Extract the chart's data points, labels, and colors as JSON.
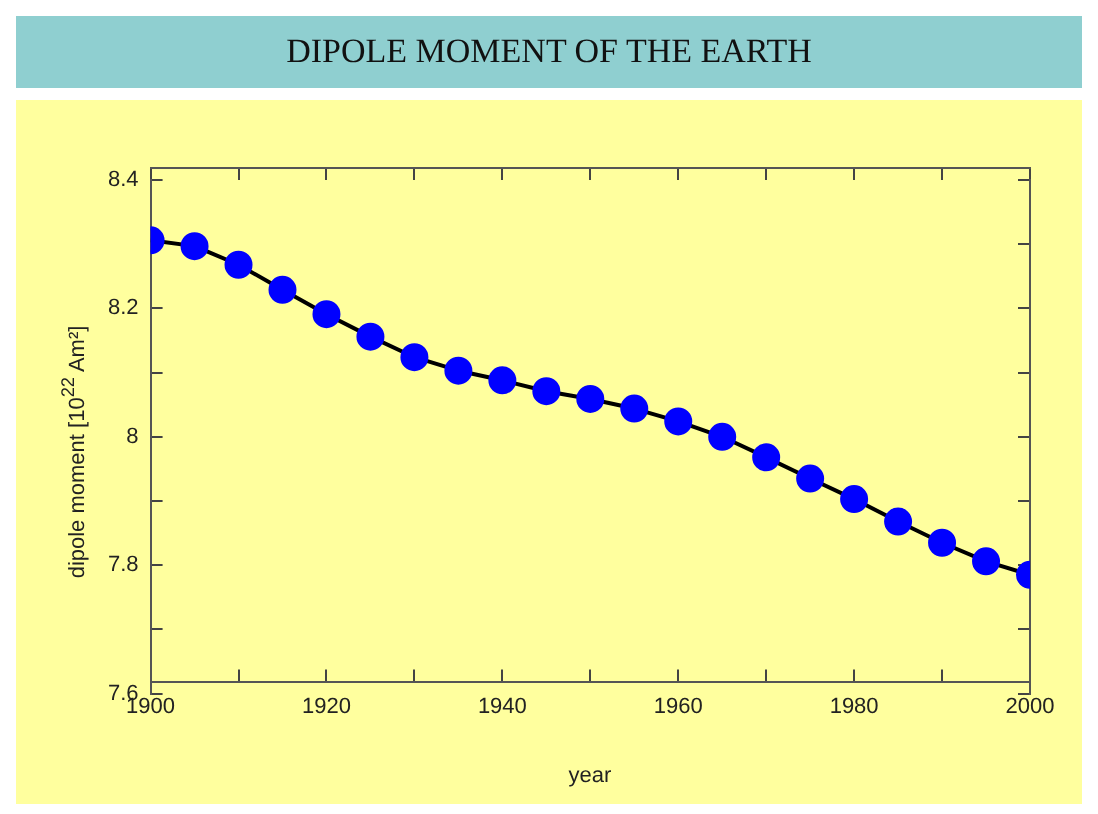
{
  "chart_data": {
    "type": "line",
    "title": "DIPOLE MOMENT OF THE EARTH",
    "xlabel": "year",
    "ylabel": "dipole moment [10$^{22}$ Am²]",
    "x": [
      1900,
      1905,
      1910,
      1915,
      1920,
      1925,
      1930,
      1935,
      1940,
      1945,
      1950,
      1955,
      1960,
      1965,
      1970,
      1975,
      1980,
      1985,
      1990,
      1995,
      2000
    ],
    "series": [
      {
        "color": "#0000ff",
        "values": [
          8.306,
          8.297,
          8.268,
          8.229,
          8.191,
          8.156,
          8.124,
          8.103,
          8.088,
          8.071,
          8.059,
          8.044,
          8.024,
          8.0,
          7.968,
          7.935,
          7.903,
          7.868,
          7.835,
          7.806,
          7.785
        ]
      }
    ],
    "xlim": [
      1900,
      2000
    ],
    "xticks": [
      1900,
      {
        "value": 1910,
        "label": null
      },
      1920,
      {
        "value": 1930,
        "label": null
      },
      1940,
      {
        "value": 1950,
        "label": null
      },
      1960,
      {
        "value": 1970,
        "label": null
      },
      1980,
      {
        "value": 1990,
        "label": null
      },
      2000
    ],
    "ylim": [
      7.6,
      8.4
    ],
    "yticks": [
      {
        "value": 7.6,
        "label": "7.6"
      },
      {
        "value": 7.7,
        "label": null
      },
      {
        "value": 7.8,
        "label": "7.8"
      },
      {
        "value": 7.9,
        "label": null
      },
      {
        "value": 8,
        "label": "8"
      },
      {
        "value": 8.1,
        "label": null
      },
      {
        "value": 8.2,
        "label": "8.2"
      },
      {
        "value": 8.3,
        "label": null
      },
      {
        "value": 8.4,
        "label": "8.4"
      }
    ],
    "grid": false,
    "legend": false,
    "marker": "circle",
    "line_style": "solid"
  }
}
